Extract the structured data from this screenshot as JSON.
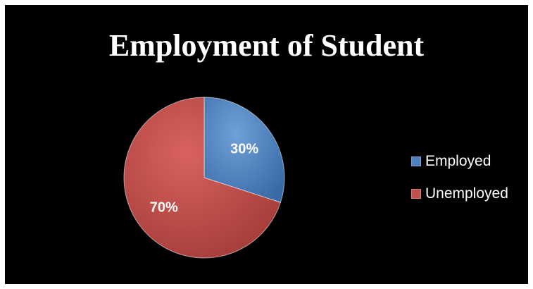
{
  "chart_data": {
    "type": "pie",
    "title": "Employment of Student",
    "categories": [
      "Employed",
      "Unemployed"
    ],
    "values": [
      30,
      70
    ],
    "labels": [
      "30%",
      "70%"
    ],
    "colors": [
      "#4f81bd",
      "#c0504d"
    ],
    "start_angle_deg": 0,
    "direction": "clockwise",
    "legend_position": "right"
  },
  "legend": {
    "items": [
      {
        "label": "Employed",
        "color": "#4f81bd"
      },
      {
        "label": "Unemployed",
        "color": "#c0504d"
      }
    ]
  }
}
